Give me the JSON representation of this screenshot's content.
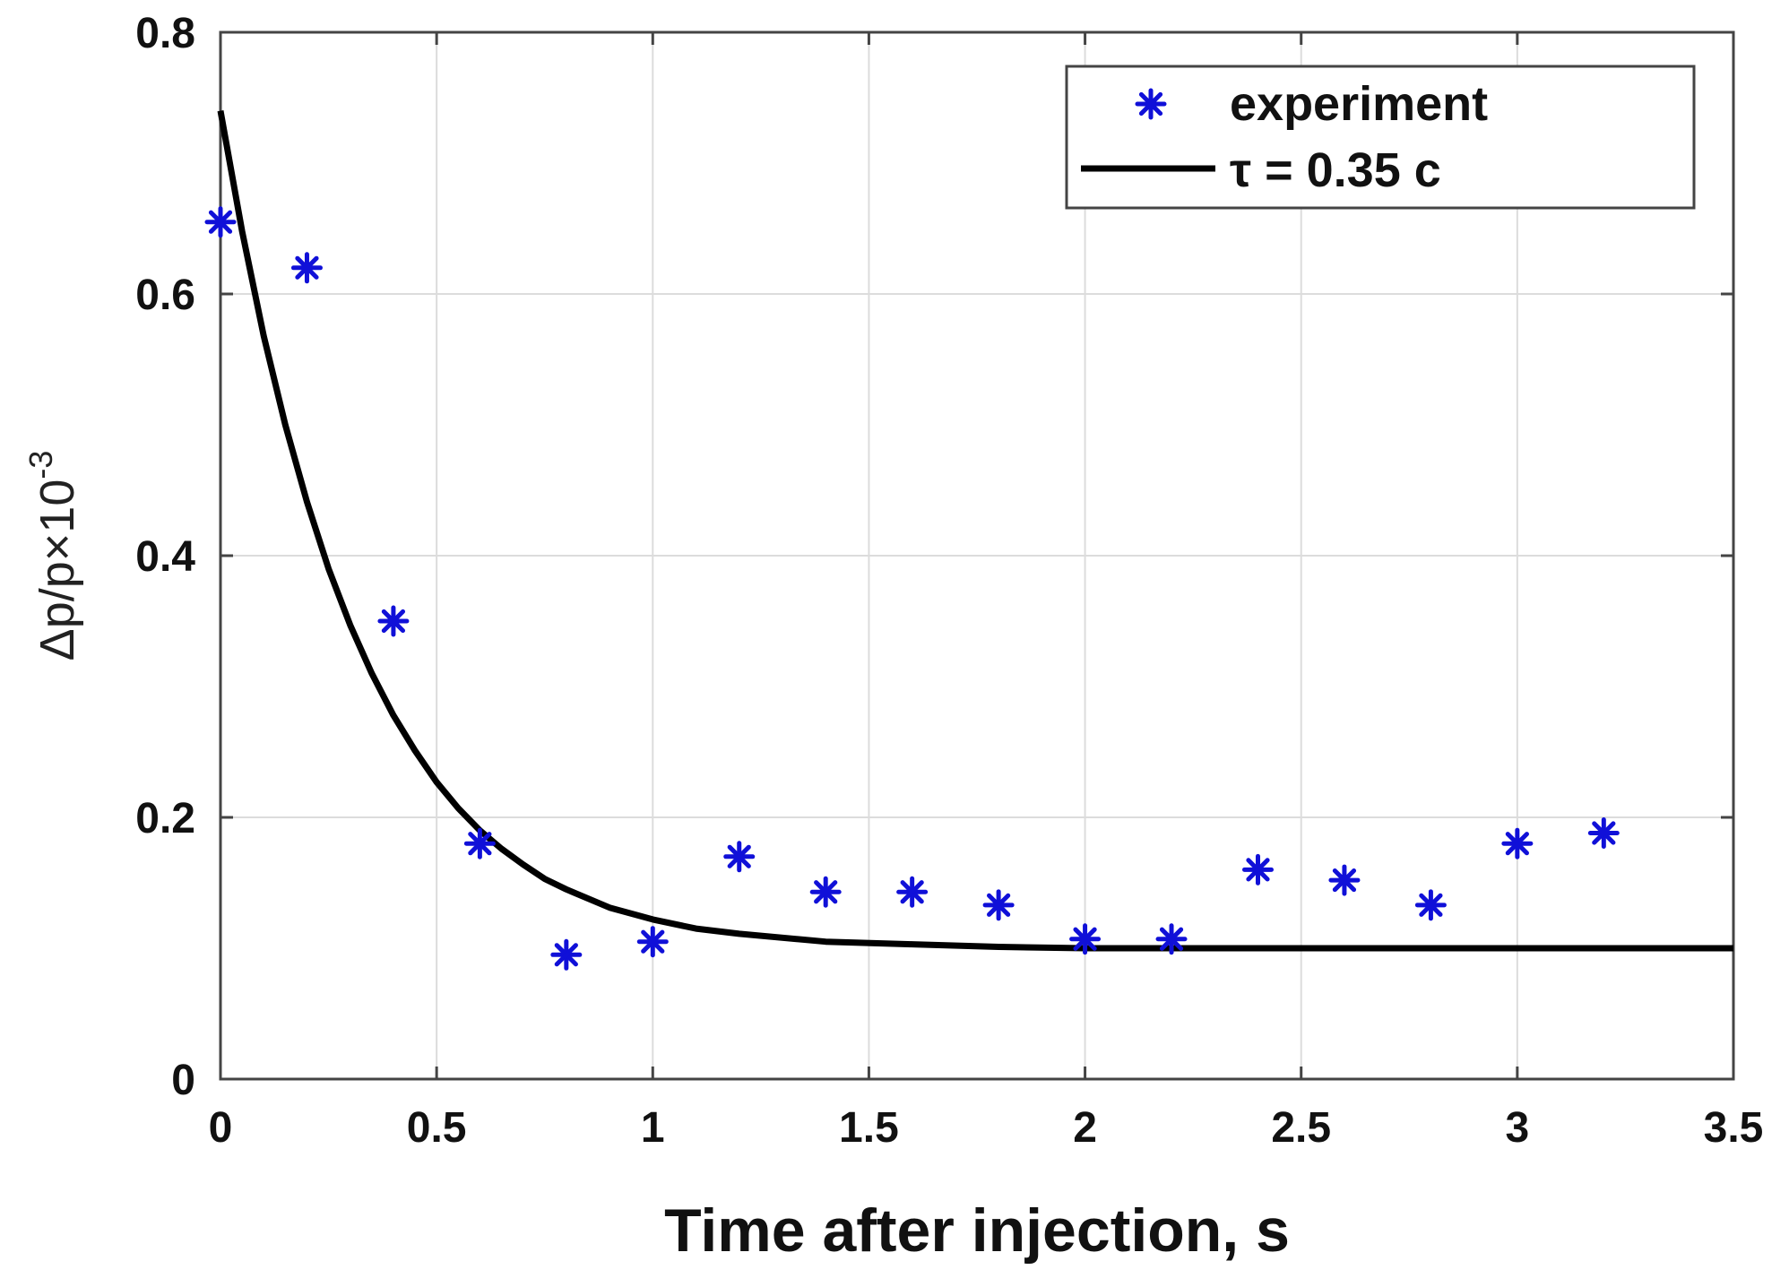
{
  "chart_data": {
    "type": "scatter",
    "title": "",
    "xlabel": "Time after injection, s",
    "ylabel": {
      "main": "Δp/p×10",
      "exponent": "-3"
    },
    "xlim": [
      0,
      3.5
    ],
    "ylim": [
      0,
      0.8
    ],
    "xticks": [
      "0",
      "0.5",
      "1",
      "1.5",
      "2",
      "2.5",
      "3",
      "3.5"
    ],
    "yticks": [
      "0",
      "0.2",
      "0.4",
      "0.6",
      "0.8"
    ],
    "grid": true,
    "legend_position": "top-right",
    "series": [
      {
        "name": "experiment",
        "kind": "marker",
        "marker": "asterisk",
        "color": "#1010d8",
        "x": [
          0,
          0.2,
          0.4,
          0.6,
          0.8,
          1.0,
          1.2,
          1.4,
          1.6,
          1.8,
          2.0,
          2.2,
          2.4,
          2.6,
          2.8,
          3.0,
          3.2
        ],
        "y": [
          0.655,
          0.62,
          0.35,
          0.18,
          0.095,
          0.105,
          0.17,
          0.143,
          0.143,
          0.133,
          0.107,
          0.107,
          0.16,
          0.152,
          0.133,
          0.18,
          0.188
        ]
      },
      {
        "name": "τ = 0.35 c",
        "kind": "line",
        "color": "#000000",
        "x": [
          0,
          0.05,
          0.1,
          0.15,
          0.2,
          0.25,
          0.3,
          0.35,
          0.4,
          0.45,
          0.5,
          0.55,
          0.6,
          0.65,
          0.7,
          0.75,
          0.8,
          0.9,
          1.0,
          1.1,
          1.2,
          1.4,
          1.6,
          1.8,
          2.0,
          2.5,
          3.0,
          3.5
        ],
        "y": [
          0.74,
          0.648,
          0.568,
          0.5,
          0.441,
          0.39,
          0.347,
          0.31,
          0.278,
          0.251,
          0.227,
          0.207,
          0.19,
          0.176,
          0.164,
          0.153,
          0.145,
          0.131,
          0.122,
          0.115,
          0.111,
          0.105,
          0.103,
          0.101,
          0.1,
          0.1,
          0.1,
          0.1
        ]
      }
    ]
  }
}
